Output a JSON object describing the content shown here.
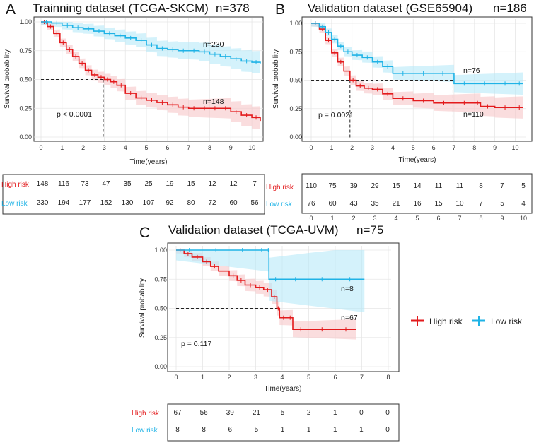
{
  "colors": {
    "high": "#e31a1c",
    "low": "#1fb3e6"
  },
  "chart_data": [
    {
      "type": "line",
      "panel_label": "A",
      "title": "Trainning dataset (TCGA-SKCM)",
      "n_total": "n=378",
      "xlabel": "Time(years)",
      "ylabel": "Survival probability",
      "xlim": [
        0,
        10.4
      ],
      "ylim": [
        0,
        1.0
      ],
      "x_ticks": [
        "0",
        "1",
        "2",
        "3",
        "4",
        "5",
        "6",
        "7",
        "8",
        "9",
        "10"
      ],
      "y_ticks": [
        "0.00",
        "0.25",
        "0.50",
        "0.75",
        "1.00"
      ],
      "p_value": "p < 0.0001",
      "median_lines": [
        2.95
      ],
      "series": [
        {
          "name": "High risk",
          "n_label": "n=148",
          "x": [
            0,
            0.3,
            0.6,
            0.9,
            1.2,
            1.5,
            1.8,
            2.1,
            2.4,
            2.7,
            3.0,
            3.3,
            3.6,
            4.0,
            4.5,
            5.0,
            5.5,
            6.0,
            6.5,
            7.0,
            7.5,
            8.0,
            8.5,
            9.0,
            9.5,
            10.0,
            10.4
          ],
          "y": [
            1.0,
            0.96,
            0.9,
            0.82,
            0.76,
            0.7,
            0.64,
            0.58,
            0.54,
            0.52,
            0.5,
            0.48,
            0.45,
            0.38,
            0.34,
            0.32,
            0.3,
            0.28,
            0.26,
            0.25,
            0.25,
            0.25,
            0.25,
            0.22,
            0.19,
            0.17,
            0.14
          ]
        },
        {
          "name": "Low risk",
          "n_label": "n=230",
          "x": [
            0,
            0.5,
            1.0,
            1.5,
            2.0,
            2.5,
            3.0,
            3.5,
            4.0,
            4.5,
            5.0,
            5.5,
            6.0,
            6.5,
            7.0,
            7.5,
            8.0,
            8.5,
            9.0,
            9.5,
            10.0,
            10.4
          ],
          "y": [
            1.0,
            0.99,
            0.97,
            0.95,
            0.94,
            0.92,
            0.9,
            0.88,
            0.86,
            0.84,
            0.8,
            0.77,
            0.76,
            0.75,
            0.75,
            0.74,
            0.72,
            0.7,
            0.68,
            0.66,
            0.65,
            0.64
          ]
        }
      ],
      "risk_table": {
        "labels": [
          "High risk",
          "Low risk"
        ],
        "rows": [
          [
            "148",
            "116",
            "73",
            "47",
            "35",
            "25",
            "19",
            "15",
            "12",
            "12",
            "7"
          ],
          [
            "230",
            "194",
            "177",
            "152",
            "130",
            "107",
            "92",
            "80",
            "72",
            "60",
            "56"
          ]
        ]
      }
    },
    {
      "type": "line",
      "panel_label": "B",
      "title": "Validation dataset (GSE65904)",
      "n_total": "n=186",
      "xlabel": "Time(years)",
      "ylabel": "Survival probability",
      "xlim": [
        0,
        10.4
      ],
      "ylim": [
        0,
        1.0
      ],
      "x_ticks": [
        "0",
        "1",
        "2",
        "3",
        "4",
        "5",
        "6",
        "7",
        "8",
        "9",
        "10"
      ],
      "y_ticks": [
        "0.00",
        "0.25",
        "0.50",
        "0.75",
        "1.00"
      ],
      "p_value": "p = 0.0021",
      "median_lines": [
        1.9,
        6.95
      ],
      "series": [
        {
          "name": "High risk",
          "n_label": "n=110",
          "x": [
            0,
            0.4,
            0.7,
            1.0,
            1.3,
            1.6,
            1.9,
            2.2,
            2.6,
            3.0,
            3.5,
            4.0,
            5.0,
            6.0,
            7.0,
            8.0,
            8.3,
            9.0,
            10.0,
            10.4
          ],
          "y": [
            1.0,
            0.95,
            0.85,
            0.74,
            0.66,
            0.58,
            0.5,
            0.45,
            0.43,
            0.42,
            0.38,
            0.34,
            0.32,
            0.3,
            0.3,
            0.3,
            0.27,
            0.26,
            0.26,
            0.26
          ]
        },
        {
          "name": "Low risk",
          "n_label": "n=76",
          "x": [
            0,
            0.4,
            0.7,
            1.0,
            1.3,
            1.6,
            2.0,
            2.5,
            3.0,
            3.5,
            4.0,
            5.0,
            6.0,
            6.9,
            7.0,
            8.0,
            9.0,
            10.0,
            10.4
          ],
          "y": [
            1.0,
            0.97,
            0.92,
            0.86,
            0.8,
            0.75,
            0.72,
            0.7,
            0.66,
            0.62,
            0.56,
            0.56,
            0.56,
            0.56,
            0.47,
            0.47,
            0.47,
            0.47,
            0.47
          ]
        }
      ],
      "risk_table": {
        "labels": [
          "High risk",
          "Low risk"
        ],
        "rows": [
          [
            "110",
            "75",
            "39",
            "29",
            "15",
            "14",
            "11",
            "11",
            "8",
            "7",
            "5"
          ],
          [
            "76",
            "60",
            "43",
            "35",
            "21",
            "16",
            "15",
            "10",
            "7",
            "5",
            "4"
          ]
        ]
      }
    },
    {
      "type": "line",
      "panel_label": "C",
      "title": "Validation dataset (TCGA-UVM)",
      "n_total": "n=75",
      "xlabel": "Time(years)",
      "ylabel": "Survival probability",
      "xlim": [
        0,
        8.0
      ],
      "ylim": [
        0,
        1.0
      ],
      "x_ticks": [
        "0",
        "1",
        "2",
        "3",
        "4",
        "5",
        "6",
        "7",
        "8"
      ],
      "y_ticks": [
        "0.00",
        "0.25",
        "0.50",
        "0.75",
        "1.00"
      ],
      "p_value": "p = 0.117",
      "median_lines": [
        3.8
      ],
      "series": [
        {
          "name": "High risk",
          "n_label": "n=67",
          "x": [
            0,
            0.3,
            0.6,
            1.0,
            1.3,
            1.6,
            2.0,
            2.3,
            2.6,
            3.0,
            3.3,
            3.6,
            3.8,
            3.9,
            4.2,
            4.4,
            5.0,
            6.0,
            6.8
          ],
          "y": [
            1.0,
            0.97,
            0.94,
            0.9,
            0.86,
            0.82,
            0.78,
            0.74,
            0.7,
            0.68,
            0.66,
            0.6,
            0.5,
            0.42,
            0.42,
            0.32,
            0.32,
            0.32,
            0.32
          ]
        },
        {
          "name": "Low risk",
          "n_label": "n=8",
          "x": [
            0,
            1.0,
            2.0,
            3.0,
            3.45,
            3.5,
            4.0,
            5.0,
            6.0,
            7.1
          ],
          "y": [
            1.0,
            1.0,
            1.0,
            1.0,
            1.0,
            0.75,
            0.75,
            0.75,
            0.75,
            0.75
          ]
        }
      ],
      "risk_table": {
        "labels": [
          "High risk",
          "Low risk"
        ],
        "rows": [
          [
            "67",
            "56",
            "39",
            "21",
            "5",
            "2",
            "1",
            "0",
            "0"
          ],
          [
            "8",
            "8",
            "6",
            "5",
            "1",
            "1",
            "1",
            "1",
            "0"
          ]
        ]
      }
    }
  ],
  "legend": {
    "items": [
      "High risk",
      "Low risk"
    ]
  }
}
